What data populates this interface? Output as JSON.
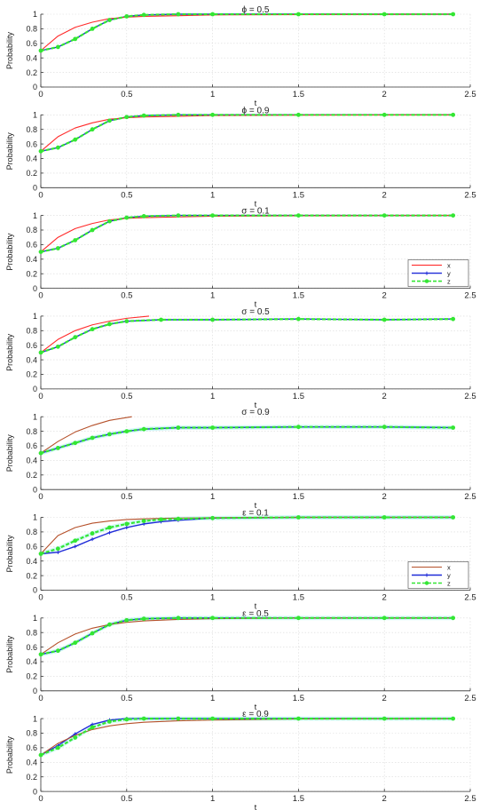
{
  "figure": {
    "ylabel": "Probability",
    "xlabel": "t",
    "xticks": [
      "0",
      "0.5",
      "1",
      "1.5",
      "2",
      "2.5"
    ],
    "yticks": [
      "0",
      "0.2",
      "0.4",
      "0.6",
      "0.8",
      "1"
    ],
    "colors": {
      "x": "#ff2a2a",
      "y": "#1f2bd8",
      "z": "#33e633",
      "x_alt": "#b5502a",
      "band": "#aef3f0",
      "grid": "#d9d9d9"
    }
  },
  "chart_data": [
    {
      "type": "line",
      "title": "ϕ = 0.5",
      "xlabel": "t",
      "ylabel": "Probability",
      "xlim": [
        0,
        2.5
      ],
      "ylim": [
        0,
        1
      ],
      "grid": true,
      "legend": null,
      "x": [
        0,
        0.1,
        0.2,
        0.3,
        0.4,
        0.5,
        0.6,
        0.8,
        1.0,
        1.5,
        2.0,
        2.4
      ],
      "series": [
        {
          "name": "x",
          "values": [
            0.5,
            0.7,
            0.82,
            0.89,
            0.94,
            0.96,
            0.97,
            0.98,
            0.99,
            0.995,
            0.998,
            1.0
          ]
        },
        {
          "name": "y",
          "values": [
            0.5,
            0.55,
            0.66,
            0.8,
            0.92,
            0.97,
            0.99,
            1.0,
            1.0,
            1.0,
            1.0,
            1.0
          ]
        },
        {
          "name": "z",
          "values": [
            0.5,
            0.55,
            0.66,
            0.8,
            0.92,
            0.97,
            0.99,
            1.0,
            1.0,
            1.0,
            1.0,
            1.0
          ]
        }
      ]
    },
    {
      "type": "line",
      "title": "ϕ = 0.9",
      "xlabel": "t",
      "ylabel": "Probability",
      "xlim": [
        0,
        2.5
      ],
      "ylim": [
        0,
        1
      ],
      "grid": true,
      "legend": null,
      "x": [
        0,
        0.1,
        0.2,
        0.3,
        0.4,
        0.5,
        0.6,
        0.8,
        1.0,
        1.5,
        2.0,
        2.4
      ],
      "series": [
        {
          "name": "x",
          "values": [
            0.5,
            0.7,
            0.82,
            0.89,
            0.94,
            0.96,
            0.97,
            0.98,
            0.99,
            0.995,
            0.998,
            1.0
          ]
        },
        {
          "name": "y",
          "values": [
            0.5,
            0.55,
            0.66,
            0.8,
            0.92,
            0.97,
            0.99,
            1.0,
            1.0,
            1.0,
            1.0,
            1.0
          ]
        },
        {
          "name": "z",
          "values": [
            0.5,
            0.55,
            0.66,
            0.8,
            0.92,
            0.97,
            0.99,
            1.0,
            1.0,
            1.0,
            1.0,
            1.0
          ]
        }
      ]
    },
    {
      "type": "line",
      "title": "σ = 0.1",
      "xlabel": "t",
      "ylabel": "Probability",
      "xlim": [
        0,
        2.5
      ],
      "ylim": [
        0,
        1
      ],
      "grid": true,
      "legend": "bottom-right",
      "x": [
        0,
        0.1,
        0.2,
        0.3,
        0.4,
        0.5,
        0.6,
        0.8,
        1.0,
        1.5,
        2.0,
        2.4
      ],
      "series": [
        {
          "name": "x",
          "values": [
            0.5,
            0.7,
            0.82,
            0.89,
            0.94,
            0.96,
            0.97,
            0.98,
            0.99,
            0.995,
            0.998,
            1.0
          ]
        },
        {
          "name": "y",
          "values": [
            0.5,
            0.55,
            0.66,
            0.8,
            0.92,
            0.97,
            0.99,
            1.0,
            1.0,
            1.0,
            1.0,
            1.0
          ]
        },
        {
          "name": "z",
          "values": [
            0.5,
            0.55,
            0.66,
            0.8,
            0.92,
            0.97,
            0.99,
            1.0,
            1.0,
            1.0,
            1.0,
            1.0
          ]
        }
      ]
    },
    {
      "type": "line",
      "title": "σ = 0.5",
      "xlabel": "t",
      "ylabel": "Probability",
      "xlim": [
        0,
        2.5
      ],
      "ylim": [
        0,
        1
      ],
      "grid": true,
      "legend": null,
      "series": [
        {
          "name": "x",
          "x": [
            0,
            0.1,
            0.2,
            0.3,
            0.4,
            0.5,
            0.63
          ],
          "values": [
            0.5,
            0.68,
            0.8,
            0.88,
            0.93,
            0.97,
            1.0
          ]
        },
        {
          "name": "y",
          "x": [
            0,
            0.1,
            0.2,
            0.3,
            0.4,
            0.5,
            0.7,
            1.0,
            1.5,
            2.0,
            2.4
          ],
          "values": [
            0.5,
            0.58,
            0.71,
            0.82,
            0.89,
            0.93,
            0.95,
            0.95,
            0.96,
            0.95,
            0.96
          ]
        },
        {
          "name": "z",
          "x": [
            0,
            0.1,
            0.2,
            0.3,
            0.4,
            0.5,
            0.7,
            1.0,
            1.5,
            2.0,
            2.4
          ],
          "values": [
            0.5,
            0.58,
            0.71,
            0.82,
            0.89,
            0.93,
            0.95,
            0.95,
            0.96,
            0.95,
            0.96
          ]
        }
      ]
    },
    {
      "type": "line",
      "title": "σ = 0.9",
      "xlabel": "t",
      "ylabel": "Probability",
      "xlim": [
        0,
        2.5
      ],
      "ylim": [
        0,
        1
      ],
      "grid": true,
      "legend": null,
      "series": [
        {
          "name": "x",
          "x": [
            0,
            0.1,
            0.2,
            0.3,
            0.4,
            0.53
          ],
          "values": [
            0.5,
            0.66,
            0.79,
            0.88,
            0.95,
            1.0
          ]
        },
        {
          "name": "y",
          "x": [
            0,
            0.1,
            0.2,
            0.3,
            0.4,
            0.5,
            0.6,
            0.8,
            1.0,
            1.5,
            2.0,
            2.4
          ],
          "values": [
            0.5,
            0.57,
            0.64,
            0.71,
            0.76,
            0.8,
            0.83,
            0.85,
            0.85,
            0.86,
            0.86,
            0.85
          ]
        },
        {
          "name": "z",
          "x": [
            0,
            0.1,
            0.2,
            0.3,
            0.4,
            0.5,
            0.6,
            0.8,
            1.0,
            1.5,
            2.0,
            2.4
          ],
          "values": [
            0.5,
            0.57,
            0.64,
            0.71,
            0.76,
            0.8,
            0.83,
            0.85,
            0.85,
            0.86,
            0.86,
            0.85
          ]
        }
      ]
    },
    {
      "type": "line",
      "title": "ε = 0.1",
      "xlabel": "t",
      "ylabel": "Probability",
      "xlim": [
        0,
        2.5
      ],
      "ylim": [
        0,
        1
      ],
      "grid": true,
      "legend": "bottom-right",
      "x": [
        0,
        0.1,
        0.2,
        0.3,
        0.4,
        0.5,
        0.6,
        0.7,
        0.8,
        1.0,
        1.5,
        2.0,
        2.4
      ],
      "series": [
        {
          "name": "x",
          "values": [
            0.5,
            0.75,
            0.86,
            0.92,
            0.95,
            0.97,
            0.98,
            0.985,
            0.99,
            0.995,
            1.0,
            1.0,
            1.0
          ]
        },
        {
          "name": "y",
          "values": [
            0.5,
            0.52,
            0.6,
            0.7,
            0.79,
            0.86,
            0.91,
            0.94,
            0.96,
            0.99,
            1.0,
            1.0,
            1.0
          ]
        },
        {
          "name": "z",
          "values": [
            0.5,
            0.57,
            0.68,
            0.78,
            0.86,
            0.91,
            0.95,
            0.97,
            0.98,
            0.99,
            1.0,
            1.0,
            1.0
          ]
        }
      ]
    },
    {
      "type": "line",
      "title": "ε = 0.5",
      "xlabel": "t",
      "ylabel": "Probability",
      "xlim": [
        0,
        2.5
      ],
      "ylim": [
        0,
        1
      ],
      "grid": true,
      "legend": null,
      "x": [
        0,
        0.1,
        0.2,
        0.3,
        0.4,
        0.5,
        0.6,
        0.8,
        1.0,
        1.5,
        2.0,
        2.4
      ],
      "series": [
        {
          "name": "x",
          "values": [
            0.5,
            0.66,
            0.78,
            0.86,
            0.91,
            0.94,
            0.96,
            0.98,
            0.99,
            1.0,
            1.0,
            1.0
          ]
        },
        {
          "name": "y",
          "values": [
            0.5,
            0.55,
            0.66,
            0.79,
            0.91,
            0.97,
            0.99,
            1.0,
            1.0,
            1.0,
            1.0,
            1.0
          ]
        },
        {
          "name": "z",
          "values": [
            0.5,
            0.55,
            0.66,
            0.79,
            0.91,
            0.97,
            0.99,
            1.0,
            1.0,
            1.0,
            1.0,
            1.0
          ]
        }
      ]
    },
    {
      "type": "line",
      "title": "ε = 0.9",
      "xlabel": "t",
      "ylabel": "Probability",
      "xlim": [
        0,
        2.5
      ],
      "ylim": [
        0,
        1
      ],
      "grid": true,
      "legend": null,
      "x": [
        0,
        0.1,
        0.2,
        0.3,
        0.4,
        0.5,
        0.6,
        0.8,
        1.0,
        1.5,
        2.0,
        2.4
      ],
      "series": [
        {
          "name": "x",
          "values": [
            0.5,
            0.66,
            0.77,
            0.85,
            0.9,
            0.93,
            0.95,
            0.97,
            0.98,
            0.995,
            1.0,
            1.0
          ]
        },
        {
          "name": "y",
          "values": [
            0.5,
            0.63,
            0.79,
            0.92,
            0.98,
            1.0,
            1.0,
            1.0,
            1.0,
            1.0,
            1.0,
            1.0
          ]
        },
        {
          "name": "z",
          "values": [
            0.5,
            0.6,
            0.74,
            0.88,
            0.96,
            0.99,
            1.0,
            1.0,
            1.0,
            1.0,
            1.0,
            1.0
          ]
        }
      ]
    }
  ]
}
